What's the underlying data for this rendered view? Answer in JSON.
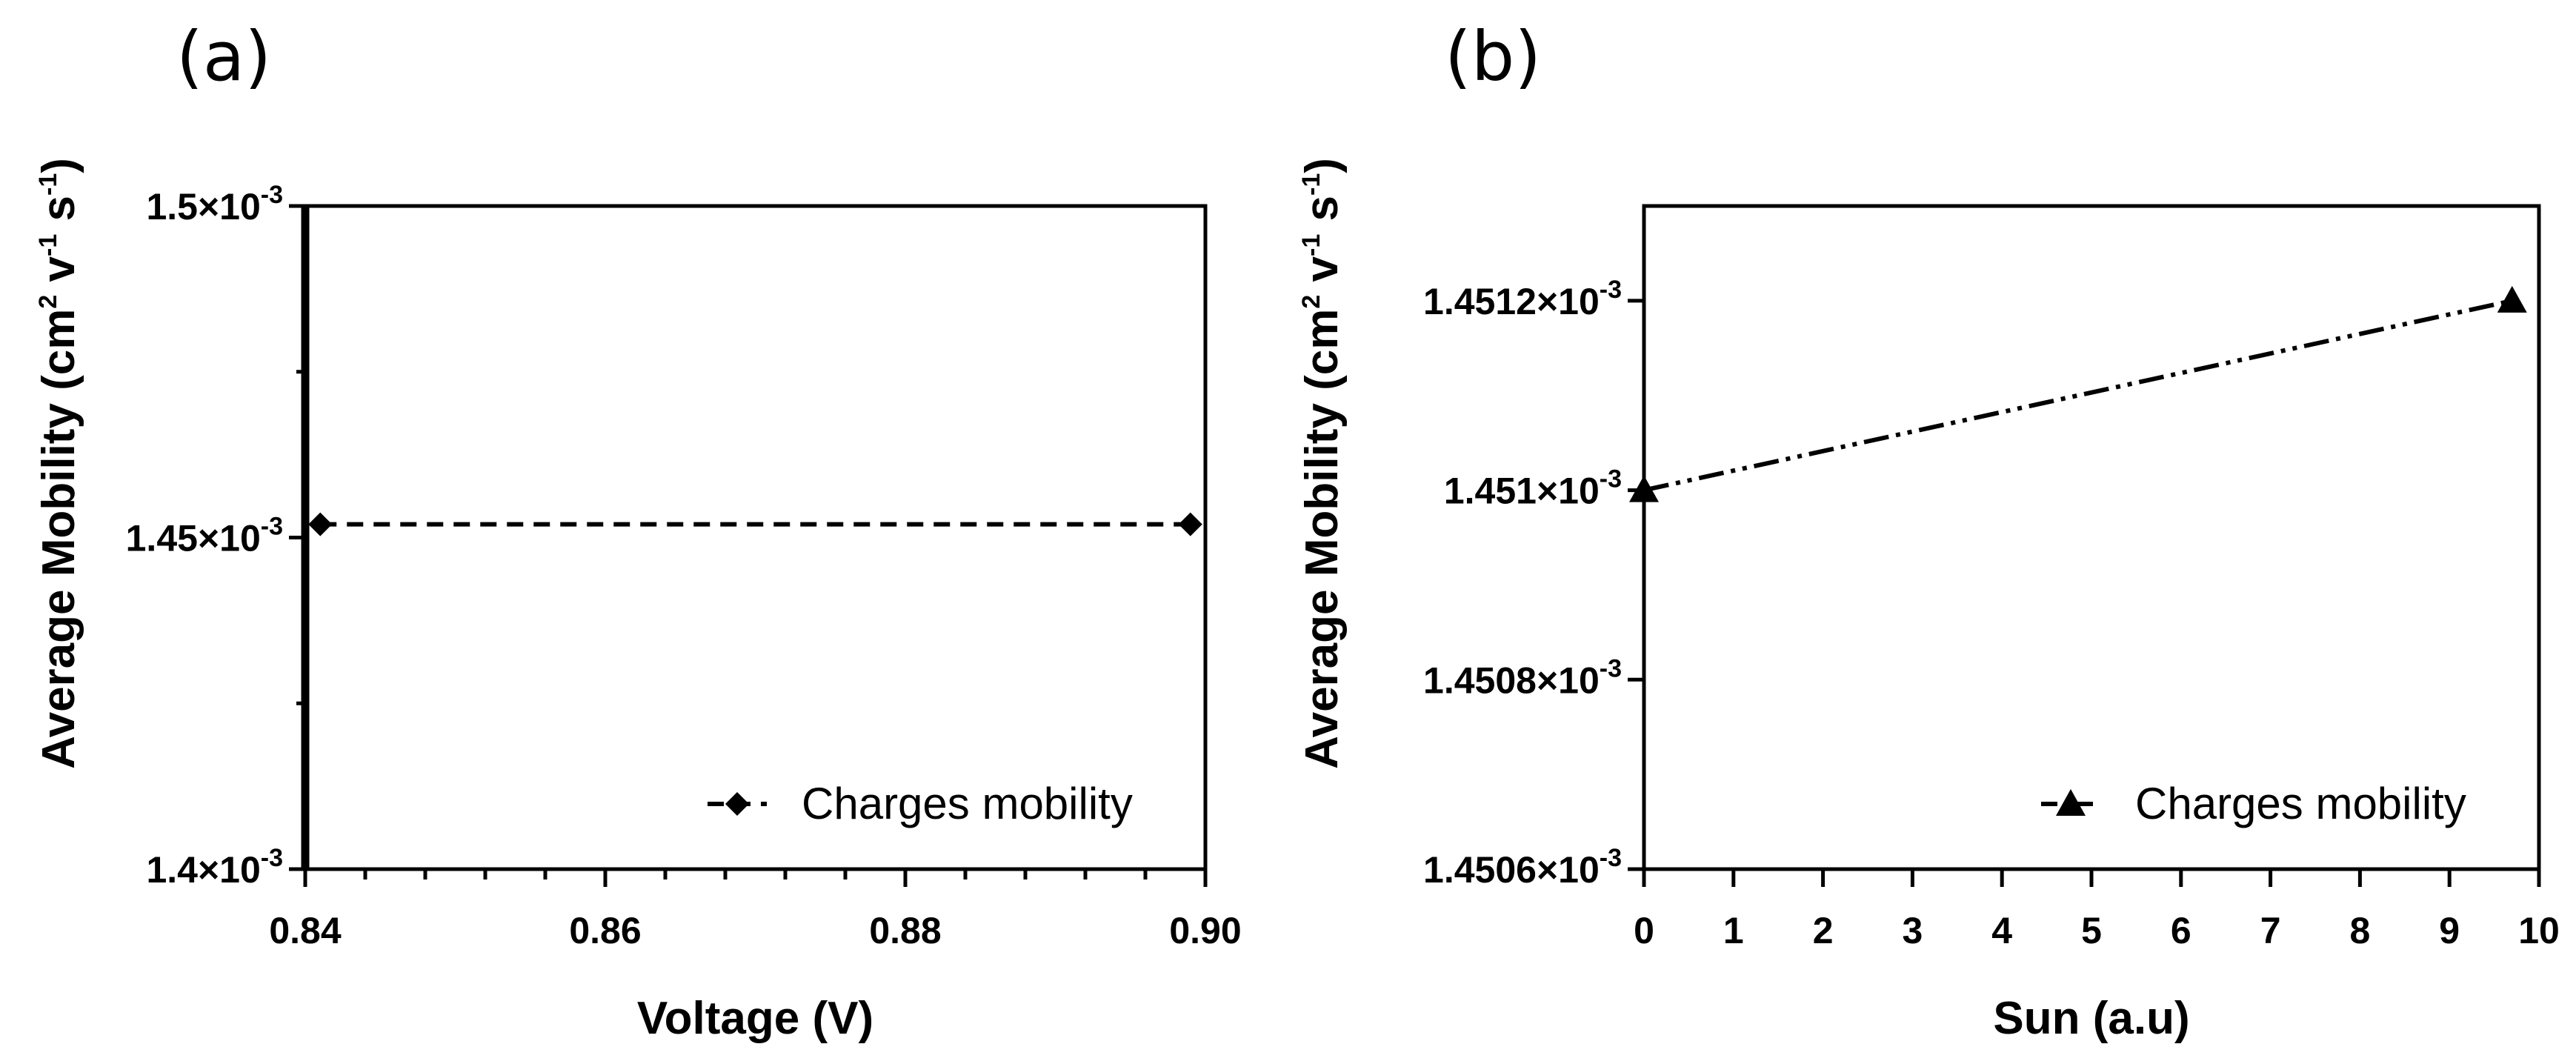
{
  "chart_data": [
    {
      "panel": "(a)",
      "type": "line",
      "xlabel": "Voltage (V)",
      "ylabel": "Average Mobility (cm",
      "ylabel_units": {
        "sup1": "2",
        "mid1": " v",
        "sup2": "-1",
        "mid2": " s",
        "sup3": "-1",
        "end": ")"
      },
      "xlim": [
        0.84,
        0.9
      ],
      "ylim": [
        0.0014,
        0.0015
      ],
      "x_ticks": [
        0.84,
        0.86,
        0.88,
        0.9
      ],
      "x_tick_labels": [
        "0.84",
        "0.86",
        "0.88",
        "0.90"
      ],
      "y_ticks": [
        0.0014,
        0.00145,
        0.0015
      ],
      "y_tick_labels": [
        {
          "mantissa": "1.4×10",
          "exp": "-3"
        },
        {
          "mantissa": "1.45×10",
          "exp": "-3"
        },
        {
          "mantissa": "1.5×10",
          "exp": "-3"
        }
      ],
      "series": [
        {
          "name": "Charges mobility",
          "marker": "diamond",
          "line": "dashed",
          "x": [
            0.841,
            0.899
          ],
          "y": [
            0.001452,
            0.001452
          ]
        }
      ],
      "legend": {
        "position": "bottom-right",
        "label": "Charges mobility"
      }
    },
    {
      "panel": "(b)",
      "type": "line",
      "xlabel": "Sun (a.u)",
      "ylabel": "Average Mobility (cm",
      "ylabel_units": {
        "sup1": "2",
        "mid1": " v",
        "sup2": "-1",
        "mid2": " s",
        "sup3": "-1",
        "end": ")"
      },
      "xlim": [
        0,
        10
      ],
      "ylim": [
        0.0014506,
        0.0014513
      ],
      "x_ticks": [
        0,
        1,
        2,
        3,
        4,
        5,
        6,
        7,
        8,
        9,
        10
      ],
      "x_tick_labels": [
        "0",
        "1",
        "2",
        "3",
        "4",
        "5",
        "6",
        "7",
        "8",
        "9",
        "10"
      ],
      "y_ticks": [
        0.0014506,
        0.0014508,
        0.001451,
        0.0014512
      ],
      "y_tick_labels": [
        {
          "mantissa": "1.4506×10",
          "exp": "-3"
        },
        {
          "mantissa": "1.4508×10",
          "exp": "-3"
        },
        {
          "mantissa": "1.451×10",
          "exp": "-3"
        },
        {
          "mantissa": "1.4512×10",
          "exp": "-3"
        }
      ],
      "series": [
        {
          "name": "Charges mobility",
          "marker": "triangle",
          "line": "dash-dot-dot",
          "x": [
            0,
            9.7
          ],
          "y": [
            0.001451,
            0.0014512
          ]
        }
      ],
      "legend": {
        "position": "bottom-right",
        "label": "Charges mobility"
      }
    }
  ]
}
